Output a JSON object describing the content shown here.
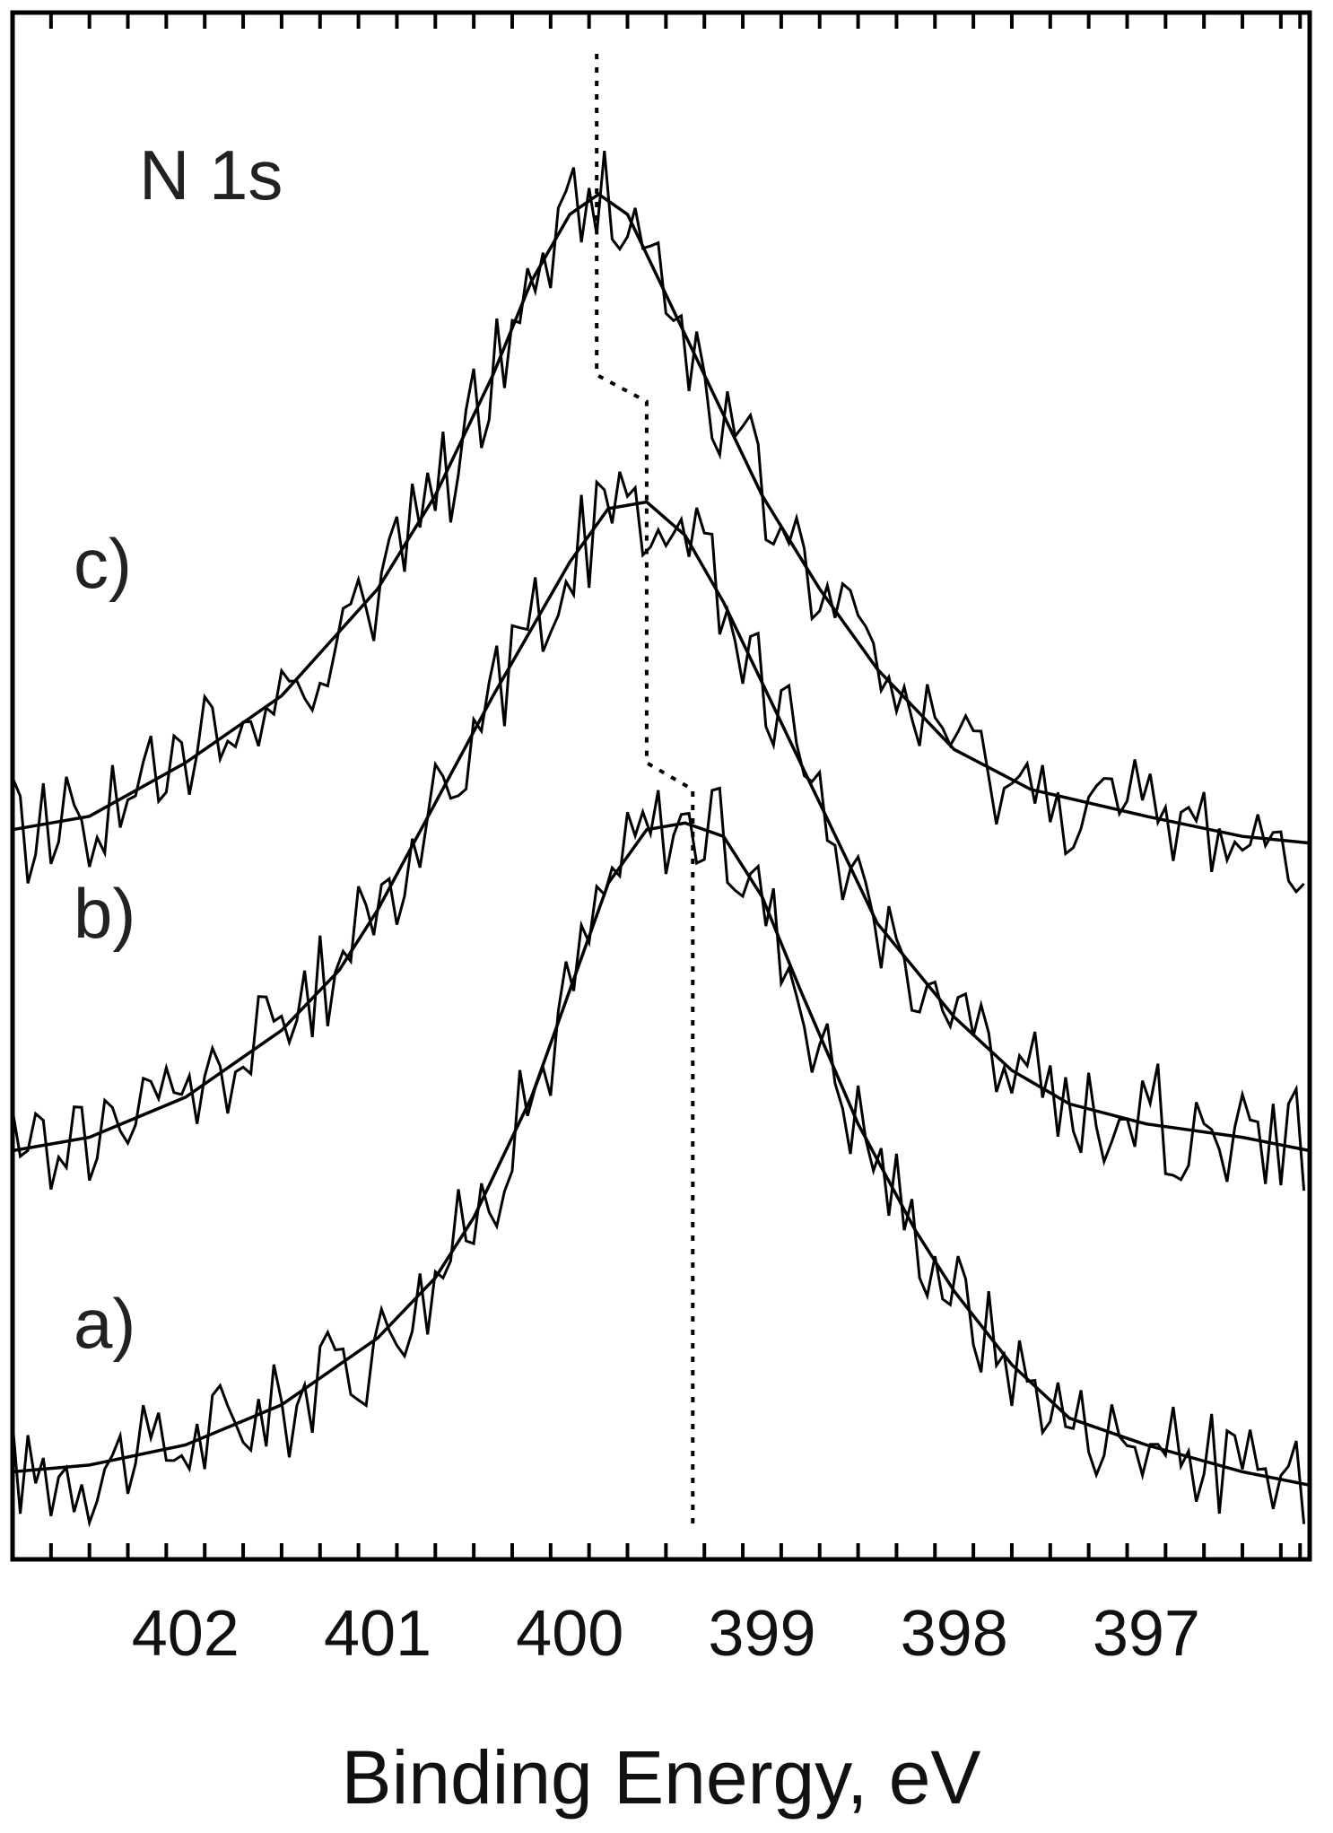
{
  "chart_data": {
    "type": "line",
    "title": "",
    "annotation": "N 1s",
    "xlabel": "Binding Energy, eV",
    "ylabel": "",
    "x_reversed": true,
    "xlim": [
      402.9,
      396.15
    ],
    "x_ticks": [
      402,
      401,
      400,
      399,
      398,
      397
    ],
    "x_tick_labels": [
      "402",
      "401",
      "400",
      "399",
      "398",
      "397"
    ],
    "grid": false,
    "legend": "none",
    "series": [
      {
        "name": "a)",
        "raw_noise": 0.03,
        "fit": [
          {
            "x": 402.9,
            "y": 0.04
          },
          {
            "x": 402.5,
            "y": 0.045
          },
          {
            "x": 402.0,
            "y": 0.06
          },
          {
            "x": 401.5,
            "y": 0.09
          },
          {
            "x": 401.0,
            "y": 0.14
          },
          {
            "x": 400.7,
            "y": 0.185
          },
          {
            "x": 400.5,
            "y": 0.23
          },
          {
            "x": 400.2,
            "y": 0.32
          },
          {
            "x": 400.0,
            "y": 0.4
          },
          {
            "x": 399.8,
            "y": 0.48
          },
          {
            "x": 399.6,
            "y": 0.52
          },
          {
            "x": 399.4,
            "y": 0.525
          },
          {
            "x": 399.2,
            "y": 0.515
          },
          {
            "x": 399.0,
            "y": 0.47
          },
          {
            "x": 398.8,
            "y": 0.4
          },
          {
            "x": 398.5,
            "y": 0.3
          },
          {
            "x": 398.2,
            "y": 0.22
          },
          {
            "x": 398.0,
            "y": 0.175
          },
          {
            "x": 397.7,
            "y": 0.12
          },
          {
            "x": 397.4,
            "y": 0.08
          },
          {
            "x": 397.0,
            "y": 0.06
          },
          {
            "x": 396.5,
            "y": 0.04
          },
          {
            "x": 396.15,
            "y": 0.03
          }
        ]
      },
      {
        "name": "b)",
        "raw_noise": 0.03,
        "fit": [
          {
            "x": 402.9,
            "y": 0.28
          },
          {
            "x": 402.5,
            "y": 0.29
          },
          {
            "x": 402.0,
            "y": 0.32
          },
          {
            "x": 401.5,
            "y": 0.37
          },
          {
            "x": 401.2,
            "y": 0.415
          },
          {
            "x": 401.0,
            "y": 0.46
          },
          {
            "x": 400.7,
            "y": 0.54
          },
          {
            "x": 400.4,
            "y": 0.62
          },
          {
            "x": 400.0,
            "y": 0.72
          },
          {
            "x": 399.8,
            "y": 0.76
          },
          {
            "x": 399.6,
            "y": 0.765
          },
          {
            "x": 399.4,
            "y": 0.74
          },
          {
            "x": 399.2,
            "y": 0.69
          },
          {
            "x": 399.0,
            "y": 0.63
          },
          {
            "x": 398.7,
            "y": 0.54
          },
          {
            "x": 398.4,
            "y": 0.45
          },
          {
            "x": 398.0,
            "y": 0.38
          },
          {
            "x": 397.7,
            "y": 0.34
          },
          {
            "x": 397.4,
            "y": 0.315
          },
          {
            "x": 397.0,
            "y": 0.3
          },
          {
            "x": 396.5,
            "y": 0.29
          },
          {
            "x": 396.15,
            "y": 0.28
          }
        ]
      },
      {
        "name": "c)",
        "raw_noise": 0.03,
        "fit": [
          {
            "x": 402.9,
            "y": 0.52
          },
          {
            "x": 402.5,
            "y": 0.53
          },
          {
            "x": 402.0,
            "y": 0.57
          },
          {
            "x": 401.5,
            "y": 0.62
          },
          {
            "x": 401.0,
            "y": 0.7
          },
          {
            "x": 400.7,
            "y": 0.77
          },
          {
            "x": 400.4,
            "y": 0.86
          },
          {
            "x": 400.2,
            "y": 0.93
          },
          {
            "x": 400.0,
            "y": 0.98
          },
          {
            "x": 399.85,
            "y": 0.995
          },
          {
            "x": 399.7,
            "y": 0.98
          },
          {
            "x": 399.5,
            "y": 0.92
          },
          {
            "x": 399.2,
            "y": 0.83
          },
          {
            "x": 399.0,
            "y": 0.77
          },
          {
            "x": 398.7,
            "y": 0.7
          },
          {
            "x": 398.4,
            "y": 0.64
          },
          {
            "x": 398.0,
            "y": 0.58
          },
          {
            "x": 397.6,
            "y": 0.55
          },
          {
            "x": 397.0,
            "y": 0.53
          },
          {
            "x": 396.5,
            "y": 0.515
          },
          {
            "x": 396.15,
            "y": 0.51
          }
        ]
      }
    ],
    "peak_marker_line": [
      {
        "x": 399.86,
        "y": 1.1
      },
      {
        "x": 399.86,
        "y": 0.86
      },
      {
        "x": 399.6,
        "y": 0.84
      },
      {
        "x": 399.6,
        "y": 0.57
      },
      {
        "x": 399.36,
        "y": 0.55
      },
      {
        "x": 399.36,
        "y": 0.0
      }
    ],
    "ylim": [
      0.0,
      1.1
    ]
  }
}
